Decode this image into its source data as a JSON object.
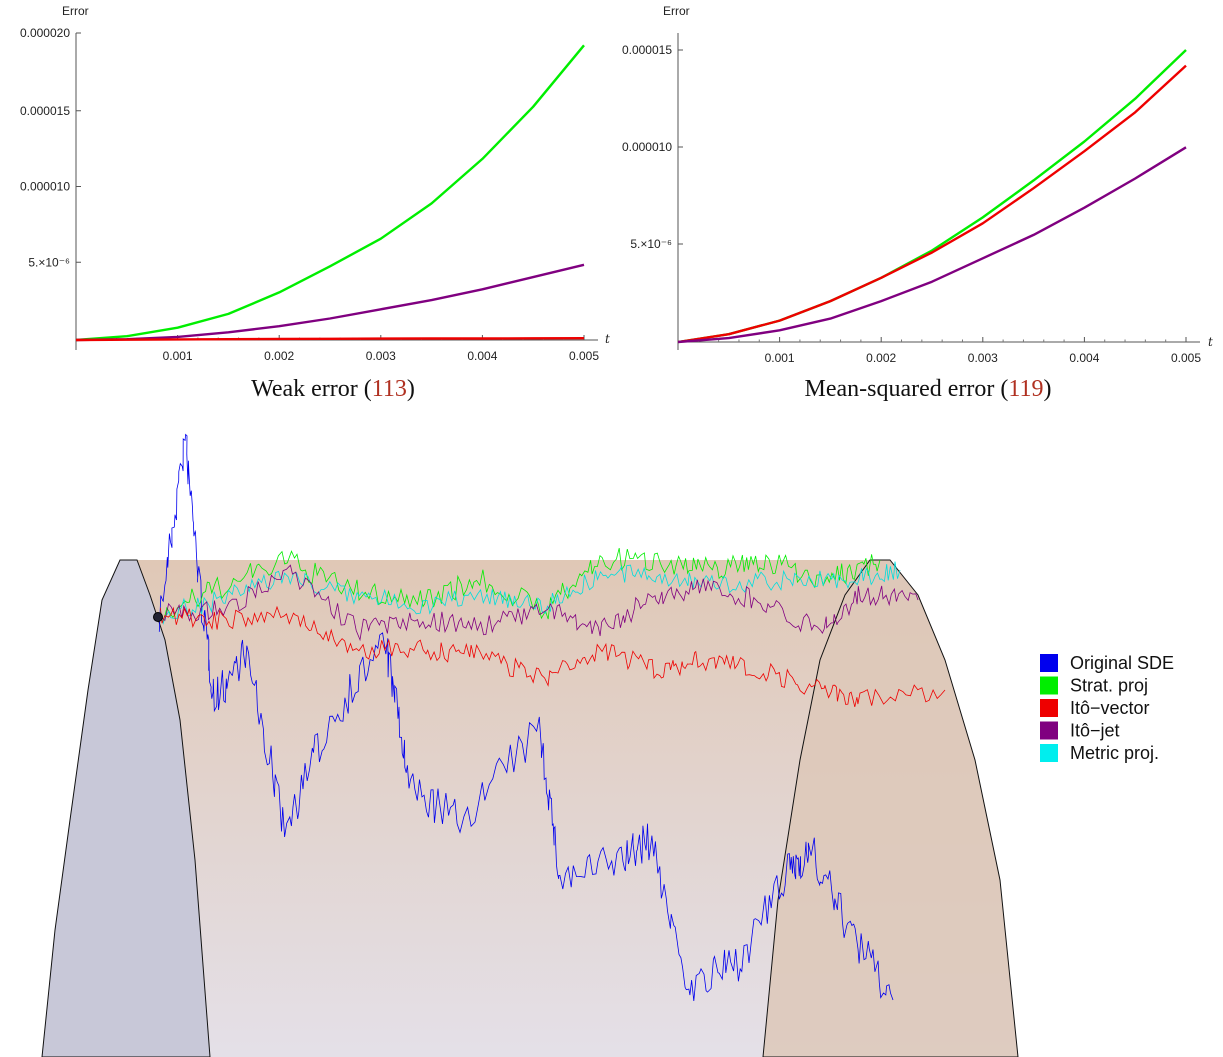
{
  "chart_data": [
    {
      "type": "line",
      "ylabel": "Error",
      "xlabel": "t",
      "caption": "Weak error",
      "caption_ref": "113",
      "xlim": [
        0,
        0.005
      ],
      "ylim": [
        0,
        2e-05
      ],
      "x_ticks": [
        "0.001",
        "0.002",
        "0.003",
        "0.004",
        "0.005"
      ],
      "y_ticks": [
        "0.000020",
        "0.000015",
        "0.000010",
        "5.×10⁻⁶"
      ],
      "x": [
        0,
        0.0005,
        0.001,
        0.0015,
        0.002,
        0.0025,
        0.003,
        0.0035,
        0.004,
        0.0045,
        0.005
      ],
      "series": [
        {
          "color": "#00ee00",
          "values": [
            0,
            2.5e-07,
            8e-07,
            1.7e-06,
            3.1e-06,
            4.8e-06,
            6.6e-06,
            8.9e-06,
            1.18e-05,
            1.52e-05,
            1.92e-05
          ]
        },
        {
          "color": "#800080",
          "values": [
            0,
            5e-08,
            2e-07,
            5e-07,
            9e-07,
            1.4e-06,
            2e-06,
            2.6e-06,
            3.3e-06,
            4.1e-06,
            4.9e-06
          ]
        },
        {
          "color": "#ee0000",
          "values": [
            0,
            2e-08,
            4e-08,
            5e-08,
            7e-08,
            8e-08,
            9e-08,
            1e-07,
            1e-07,
            1.1e-07,
            1.2e-07
          ]
        }
      ]
    },
    {
      "type": "line",
      "ylabel": "Error",
      "xlabel": "t",
      "caption": "Mean-squared error",
      "caption_ref": "119",
      "xlim": [
        0,
        0.005
      ],
      "ylim": [
        0,
        1.5e-05
      ],
      "x_ticks": [
        "0.001",
        "0.002",
        "0.003",
        "0.004",
        "0.005"
      ],
      "y_ticks": [
        "0.000015",
        "0.000010",
        "5.×10⁻⁶"
      ],
      "x": [
        0,
        0.0005,
        0.001,
        0.0015,
        0.002,
        0.0025,
        0.003,
        0.0035,
        0.004,
        0.0045,
        0.005
      ],
      "series": [
        {
          "color": "#00ee00",
          "values": [
            0,
            4e-07,
            1.1e-06,
            2.1e-06,
            3.3e-06,
            4.7e-06,
            6.4e-06,
            8.3e-06,
            1.03e-05,
            1.25e-05,
            1.5e-05
          ]
        },
        {
          "color": "#ee0000",
          "values": [
            0,
            4e-07,
            1.1e-06,
            2.1e-06,
            3.3e-06,
            4.6e-06,
            6.1e-06,
            7.9e-06,
            9.8e-06,
            1.18e-05,
            1.42e-05
          ]
        },
        {
          "color": "#800080",
          "values": [
            0,
            2e-07,
            6e-07,
            1.2e-06,
            2.1e-06,
            3.1e-06,
            4.3e-06,
            5.5e-06,
            6.9e-06,
            8.4e-06,
            1e-05
          ]
        }
      ]
    },
    {
      "type": "other",
      "legend": [
        {
          "label": "Original SDE",
          "color": "#0000ee"
        },
        {
          "label": "Strat. proj",
          "color": "#00ee00"
        },
        {
          "label": "Itô−vector",
          "color": "#ee0000"
        },
        {
          "label": "Itô−jet",
          "color": "#800080"
        },
        {
          "label": "Metric proj.",
          "color": "#00eeee"
        }
      ]
    }
  ]
}
